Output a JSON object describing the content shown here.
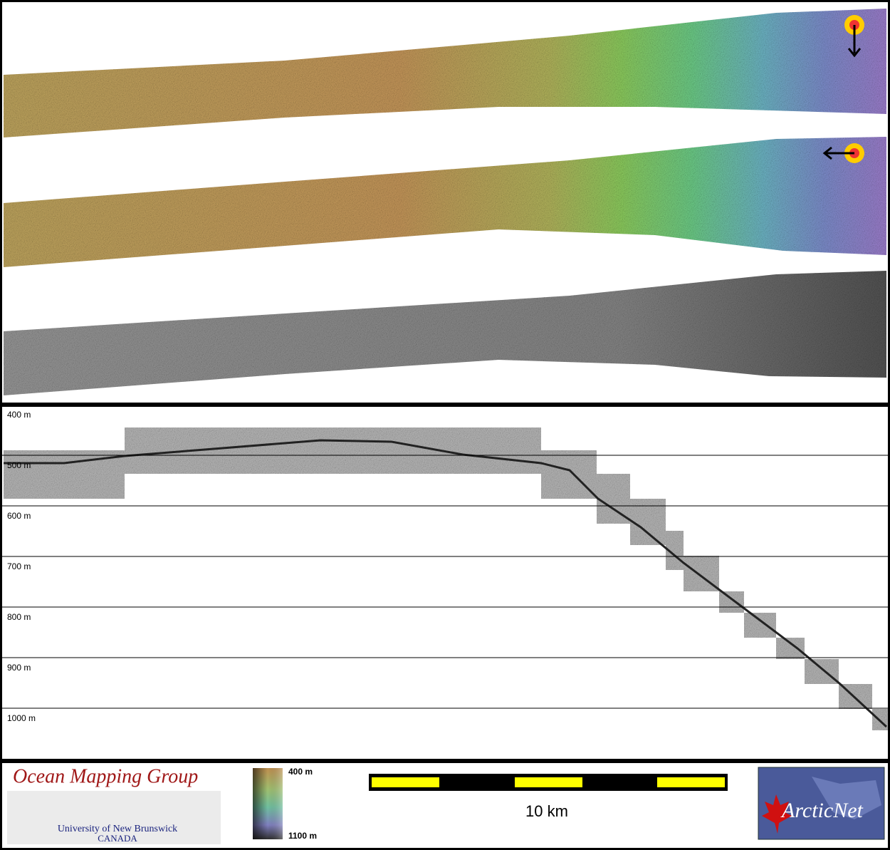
{
  "profile": {
    "depth_labels": [
      "400 m",
      "500 m",
      "600 m",
      "700 m",
      "800 m",
      "900 m",
      "1000 m"
    ]
  },
  "legend": {
    "logo_title": "Ocean Mapping Group",
    "logo_university": "University of New Brunswick",
    "logo_country": "CANADA",
    "colorbar_top": "400 m",
    "colorbar_bottom": "1100 m",
    "scale_label": "10 km",
    "partner_logo": "ArcticNet"
  }
}
